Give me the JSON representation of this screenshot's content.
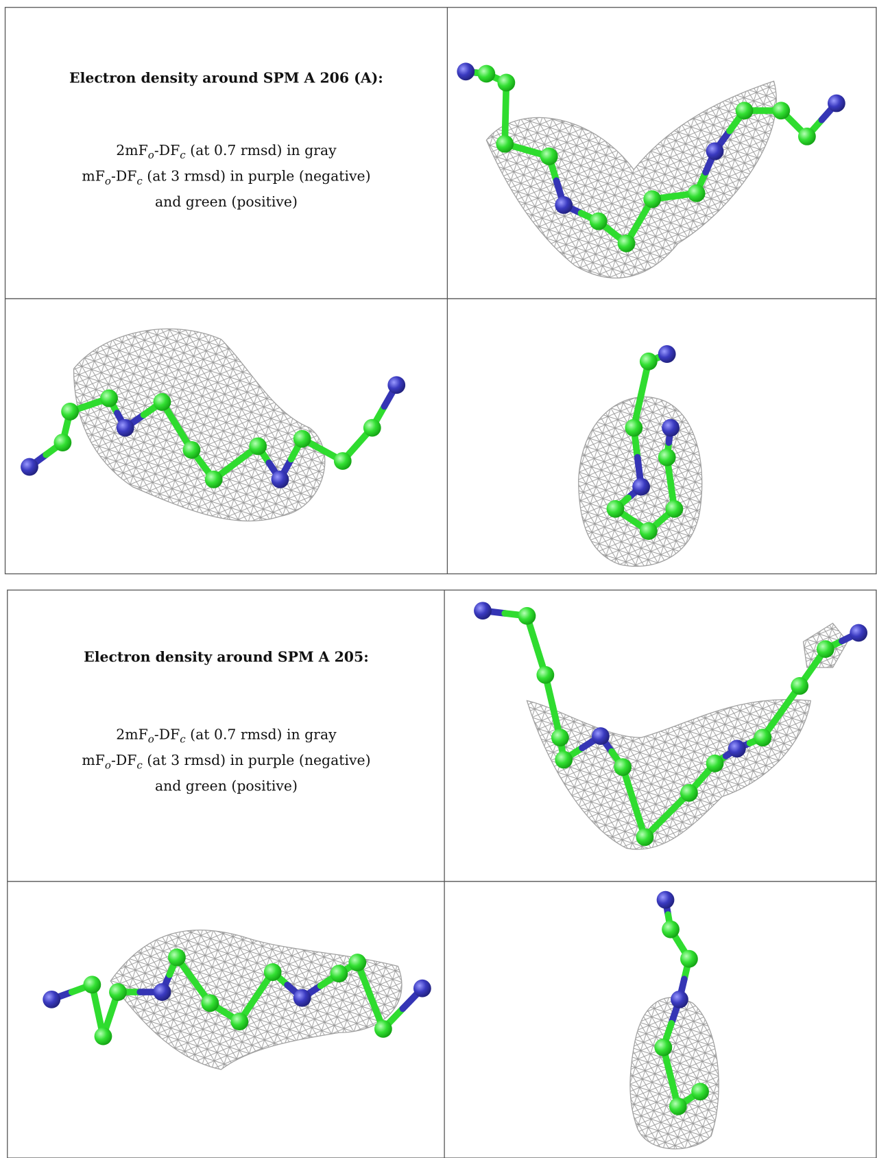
{
  "tables": [
    {
      "title": "Electron density around SPM A 206 (A):",
      "lines": [
        [
          "2mF",
          "o",
          "-DF",
          "c",
          " (at 0.7 rmsd) in gray"
        ],
        [
          "mF",
          "o",
          "-DF",
          "c",
          " (at 3 rmsd) in purple (negative)"
        ],
        [
          "and green (positive)"
        ]
      ]
    },
    {
      "title": "Electron density around SPM A 205:",
      "lines": [
        [
          "2mF",
          "o",
          "-DF",
          "c",
          " (at 0.7 rmsd) in gray"
        ],
        [
          "mF",
          "o",
          "-DF",
          "c",
          " (at 3 rmsd) in purple (negative)"
        ],
        [
          "and green (positive)"
        ]
      ]
    }
  ]
}
